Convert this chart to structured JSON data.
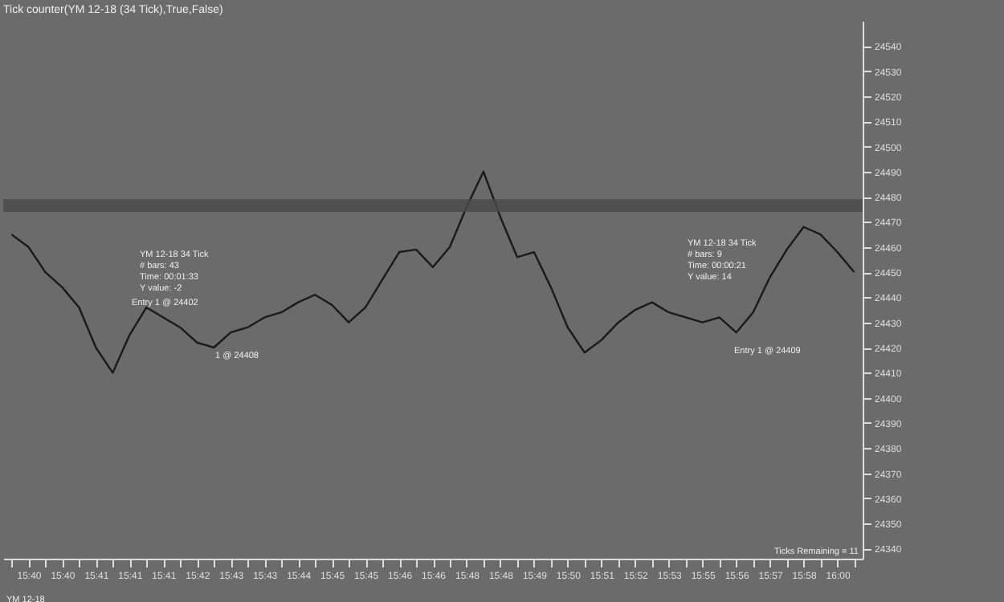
{
  "chart_data": {
    "type": "line",
    "title": "Tick counter(YM 12-18 (34 Tick),True,False)",
    "categories": [
      null,
      "15:40",
      null,
      "15:40",
      null,
      "15:41",
      null,
      "15:41",
      null,
      "15:41",
      null,
      "15:42",
      null,
      "15:43",
      null,
      "15:43",
      null,
      "15:44",
      null,
      "15:45",
      null,
      "15:45",
      null,
      "15:46",
      null,
      "15:46",
      null,
      "15:48",
      null,
      "15:48",
      null,
      "15:49",
      null,
      "15:50",
      null,
      "15:51",
      null,
      "15:52",
      null,
      "15:53",
      null,
      "15:55",
      null,
      "15:56",
      null,
      "15:57",
      null,
      "15:58",
      null,
      "16:00",
      null
    ],
    "series": [
      {
        "color": "#1a1a1a",
        "values": [
          24465,
          24460,
          24450,
          24444,
          24436,
          24420,
          24410,
          24425,
          24436,
          24432,
          24428,
          24422,
          24420,
          24426,
          24428,
          24432,
          24434,
          24438,
          24441,
          24437,
          24430,
          24436,
          24447,
          24458,
          24459,
          24452,
          24460,
          24476,
          24490,
          24472,
          24456,
          24458,
          24444,
          24428,
          24418,
          24423,
          24430,
          24435,
          24438,
          24434,
          24432,
          24430,
          24432,
          24426,
          24434,
          24448,
          24459,
          24468,
          24465,
          24458,
          24450
        ]
      }
    ],
    "ylim": [
      24336,
      24550
    ],
    "yticks": [
      24340,
      24350,
      24360,
      24370,
      24380,
      24390,
      24400,
      24410,
      24420,
      24430,
      24440,
      24450,
      24460,
      24470,
      24480,
      24490,
      24500,
      24510,
      24520,
      24530,
      24540
    ],
    "bands": [
      {
        "axis": "y",
        "from": 24474,
        "to": 24479,
        "color": "#4a4a4a"
      }
    ],
    "grid": false,
    "annotations": [
      "YM 12-18 34 Tick",
      "# bars: 43",
      "Time: 00:01:33",
      "Y value: -2",
      "Entry 1 @ 24402",
      "1 @ 24408",
      "YM 12-18 34 Tick",
      "# bars: 9",
      "Time: 00:00:21",
      "Y value: 14",
      "Entry 1 @ 24409",
      "Ticks Remaining = 11",
      "YM 12-18"
    ]
  }
}
